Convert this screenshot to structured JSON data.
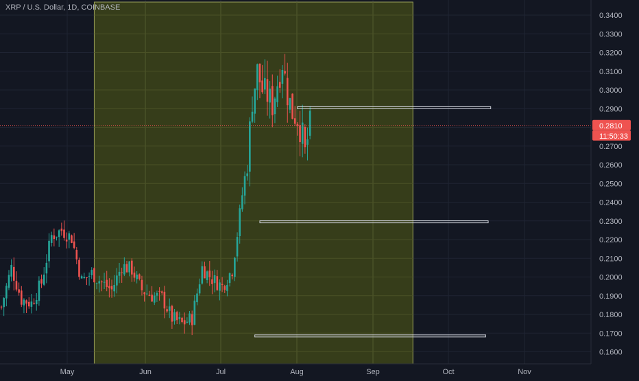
{
  "header": {
    "symbol_title": "XRP / U.S. Dollar, 1D, COINBASE"
  },
  "colors": {
    "background": "#131722",
    "grid": "#1f2433",
    "axis_text": "#b2b5be",
    "up": "#26a69a",
    "down": "#ef5350",
    "highlight_zone": "#3d4419",
    "highlight_border": "#9ba15a",
    "level_line": "#d1d4dc"
  },
  "price_axis": {
    "ticks": [
      "0.3400",
      "0.3300",
      "0.3200",
      "0.3100",
      "0.3000",
      "0.2900",
      "0.2800",
      "0.2700",
      "0.2600",
      "0.2500",
      "0.2400",
      "0.2300",
      "0.2200",
      "0.2100",
      "0.2000",
      "0.1900",
      "0.1800",
      "0.1700",
      "0.1600"
    ]
  },
  "time_axis": {
    "ticks": [
      "May",
      "Jun",
      "Jul",
      "Aug",
      "Sep",
      "Oct",
      "Nov"
    ]
  },
  "last_price": {
    "price": "0.2810",
    "countdown": "11:50:33",
    "value": 0.281
  },
  "highlight_zone": {
    "from_day": 37,
    "to_day": 164
  },
  "level_lines": [
    {
      "price": 0.2905,
      "from_day": 118,
      "to_day": 195
    },
    {
      "price": 0.2295,
      "from_day": 103,
      "to_day": 194
    },
    {
      "price": 0.1685,
      "from_day": 101,
      "to_day": 193
    }
  ],
  "chart_data": {
    "type": "candlestick",
    "title": "XRP / U.S. Dollar, 1D, COINBASE",
    "ylim": [
      0.155,
      0.345
    ],
    "x_ticks": [
      "May",
      "Jun",
      "Jul",
      "Aug",
      "Sep",
      "Oct",
      "Nov"
    ],
    "keypoints": [
      {
        "day": 0,
        "close": 0.184
      },
      {
        "day": 4,
        "close": 0.205
      },
      {
        "day": 8,
        "close": 0.188
      },
      {
        "day": 12,
        "close": 0.186
      },
      {
        "day": 16,
        "close": 0.197
      },
      {
        "day": 20,
        "close": 0.222
      },
      {
        "day": 24,
        "close": 0.225
      },
      {
        "day": 28,
        "close": 0.221
      },
      {
        "day": 32,
        "close": 0.198
      },
      {
        "day": 36,
        "close": 0.202
      },
      {
        "day": 40,
        "close": 0.197
      },
      {
        "day": 44,
        "close": 0.193
      },
      {
        "day": 48,
        "close": 0.206
      },
      {
        "day": 52,
        "close": 0.204
      },
      {
        "day": 56,
        "close": 0.193
      },
      {
        "day": 60,
        "close": 0.19
      },
      {
        "day": 64,
        "close": 0.189
      },
      {
        "day": 68,
        "close": 0.178
      },
      {
        "day": 72,
        "close": 0.175
      },
      {
        "day": 76,
        "close": 0.178
      },
      {
        "day": 80,
        "close": 0.205
      },
      {
        "day": 84,
        "close": 0.199
      },
      {
        "day": 88,
        "close": 0.195
      },
      {
        "day": 92,
        "close": 0.204
      },
      {
        "day": 94,
        "close": 0.223
      },
      {
        "day": 96,
        "close": 0.244
      },
      {
        "day": 98,
        "close": 0.262
      },
      {
        "day": 100,
        "close": 0.295
      },
      {
        "day": 102,
        "close": 0.31
      },
      {
        "day": 104,
        "close": 0.3
      },
      {
        "day": 106,
        "close": 0.297
      },
      {
        "day": 108,
        "close": 0.292
      },
      {
        "day": 110,
        "close": 0.304
      },
      {
        "day": 112,
        "close": 0.315
      },
      {
        "day": 114,
        "close": 0.298
      },
      {
        "day": 116,
        "close": 0.288
      },
      {
        "day": 118,
        "close": 0.285
      },
      {
        "day": 120,
        "close": 0.275
      },
      {
        "day": 121,
        "close": 0.266
      },
      {
        "day": 123,
        "close": 0.281
      }
    ]
  }
}
